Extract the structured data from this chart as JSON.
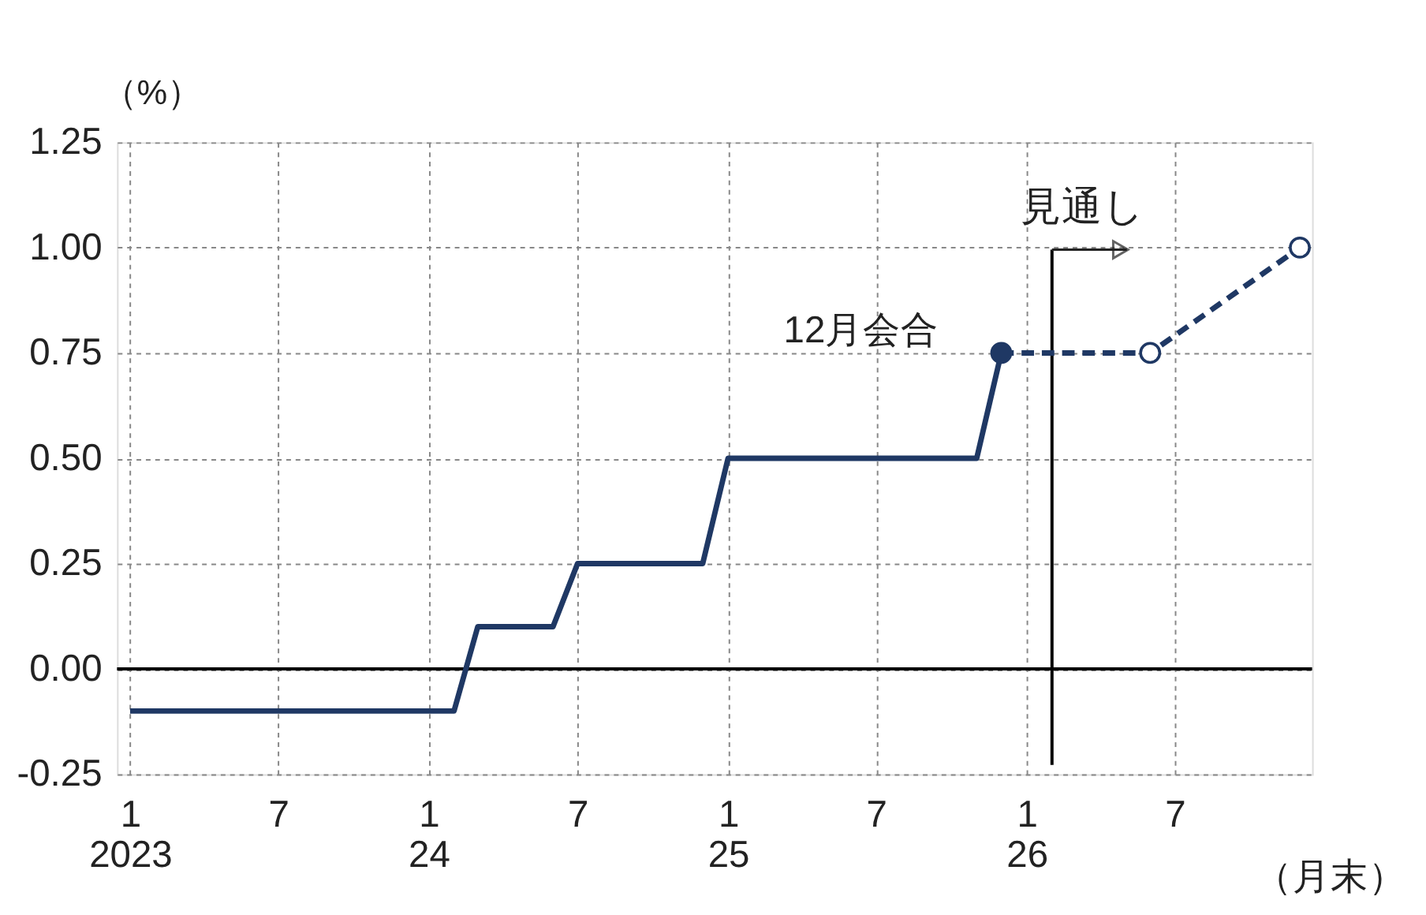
{
  "chart_data": {
    "type": "line",
    "ylabel": "（%）",
    "xlabel": "（月末）",
    "xlim": [
      "2022-12-16",
      "2026-12-16"
    ],
    "xticks": [
      {
        "value": "2023-01",
        "label": "1\n2023"
      },
      {
        "value": "2023-07",
        "label": "7"
      },
      {
        "value": "2024-01",
        "label": "1\n24"
      },
      {
        "value": "2024-07",
        "label": "7"
      },
      {
        "value": "2025-01",
        "label": "1\n25"
      },
      {
        "value": "2025-07",
        "label": "7"
      },
      {
        "value": "2026-01",
        "label": "1\n26"
      },
      {
        "value": "2026-07",
        "label": "7"
      }
    ],
    "ylim": [
      -0.25,
      1.25
    ],
    "yticks": [
      -0.25,
      {
        "value": 0,
        "label": "0.00"
      },
      0.25,
      {
        "value": 0.5,
        "label": "0.50"
      },
      0.75,
      {
        "value": 1,
        "label": "1.00"
      },
      1.25
    ],
    "grid": true,
    "series": [
      {
        "color": "#1f3864",
        "line_style": "solid",
        "marker": "none",
        "x": [
          "2023-01",
          "2024-02",
          "2024-03",
          "2024-06",
          "2024-07",
          "2024-12",
          "2025-01",
          "2025-11",
          "2025-12"
        ],
        "values": [
          -0.1,
          -0.1,
          0.1,
          0.1,
          0.25,
          0.25,
          0.5,
          0.5,
          0.75
        ]
      },
      {
        "color": "#1f3864",
        "line_style": "dashed",
        "marker": "circle",
        "x": [
          "2025-12",
          "2026-06",
          "2026-12"
        ],
        "values": [
          0.75,
          0.75,
          1.0
        ]
      },
      {
        "type": "scatter",
        "color": "#1f3864",
        "marker": "circle",
        "x": [
          "2025-12"
        ],
        "values": [
          0.75
        ]
      }
    ],
    "ref_lines": [
      {
        "axis": "y",
        "value": 0,
        "color": "#000000"
      },
      {
        "axis": "x",
        "value": "2026-02",
        "label": "見通し",
        "color": "#000000"
      }
    ],
    "annotations": [
      {
        "text": "12月会合",
        "x": "2025-12",
        "y": 0.75
      }
    ]
  }
}
